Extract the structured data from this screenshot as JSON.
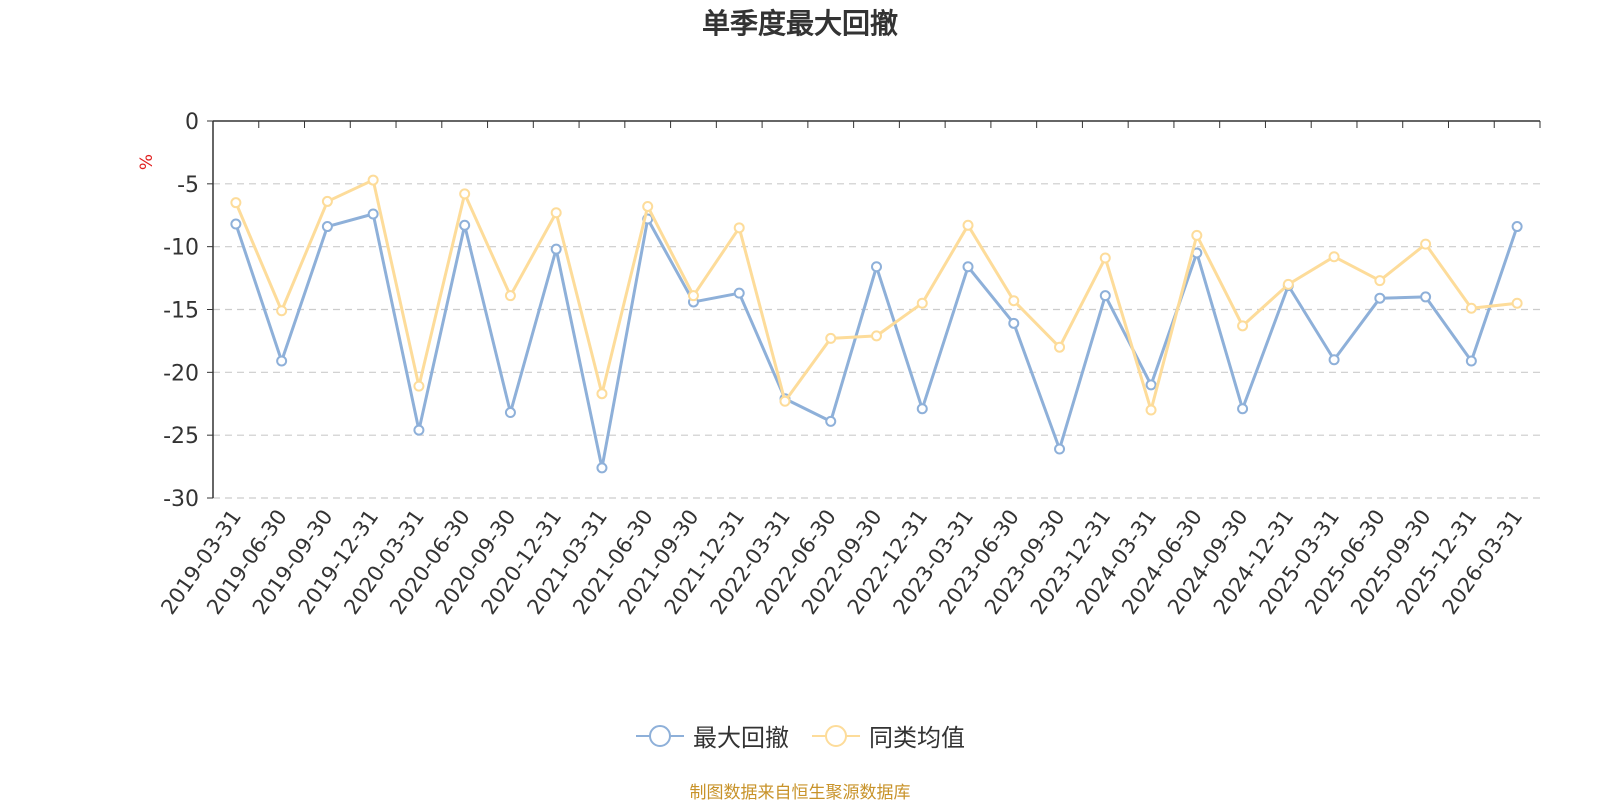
{
  "chart_data": {
    "type": "line",
    "title": "单季度最大回撤",
    "ylabel": "%",
    "xlabel": "",
    "ylim": [
      -30,
      0
    ],
    "yticks": [
      0,
      -5,
      -10,
      -15,
      -20,
      -25,
      -30
    ],
    "categories": [
      "2019-03-31",
      "2019-06-30",
      "2019-09-30",
      "2019-12-31",
      "2020-03-31",
      "2020-06-30",
      "2020-09-30",
      "2020-12-31",
      "2021-03-31",
      "2021-06-30",
      "2021-09-30",
      "2021-12-31",
      "2022-03-31",
      "2022-06-30",
      "2022-09-30",
      "2022-12-31",
      "2023-03-31",
      "2023-06-30",
      "2023-09-30",
      "2023-12-31",
      "2024-03-31",
      "2024-06-30",
      "2024-09-30",
      "2024-12-31",
      "2025-03-31",
      "2025-06-30",
      "2025-09-30",
      "2025-12-31",
      "2026-03-31"
    ],
    "series": [
      {
        "name": "最大回撤",
        "color": "#8eb0d9",
        "values": [
          -8.2,
          -19.1,
          -8.4,
          -7.4,
          -24.6,
          -8.3,
          -23.2,
          -10.2,
          -27.6,
          -7.8,
          -14.4,
          -13.7,
          -22.1,
          -23.9,
          -11.6,
          -22.9,
          -11.6,
          -16.1,
          -26.1,
          -13.9,
          -21.0,
          -10.5,
          -22.9,
          -13.1,
          -19.0,
          -14.1,
          -14.0,
          -19.1,
          -8.4
        ]
      },
      {
        "name": "同类均值",
        "color": "#fddc9a",
        "values": [
          -6.5,
          -15.1,
          -6.4,
          -4.7,
          -21.1,
          -5.8,
          -13.9,
          -7.3,
          -21.7,
          -6.8,
          -13.9,
          -8.5,
          -22.3,
          -17.3,
          -17.1,
          -14.5,
          -8.3,
          -14.3,
          -18.0,
          -10.9,
          -23.0,
          -9.1,
          -16.3,
          -13.0,
          -10.8,
          -12.7,
          -9.8,
          -14.9,
          -14.5
        ]
      }
    ],
    "grid": true,
    "legend_position": "bottom-center"
  },
  "footer": {
    "source": "制图数据来自恒生聚源数据库",
    "source_color": "#c8932a"
  }
}
